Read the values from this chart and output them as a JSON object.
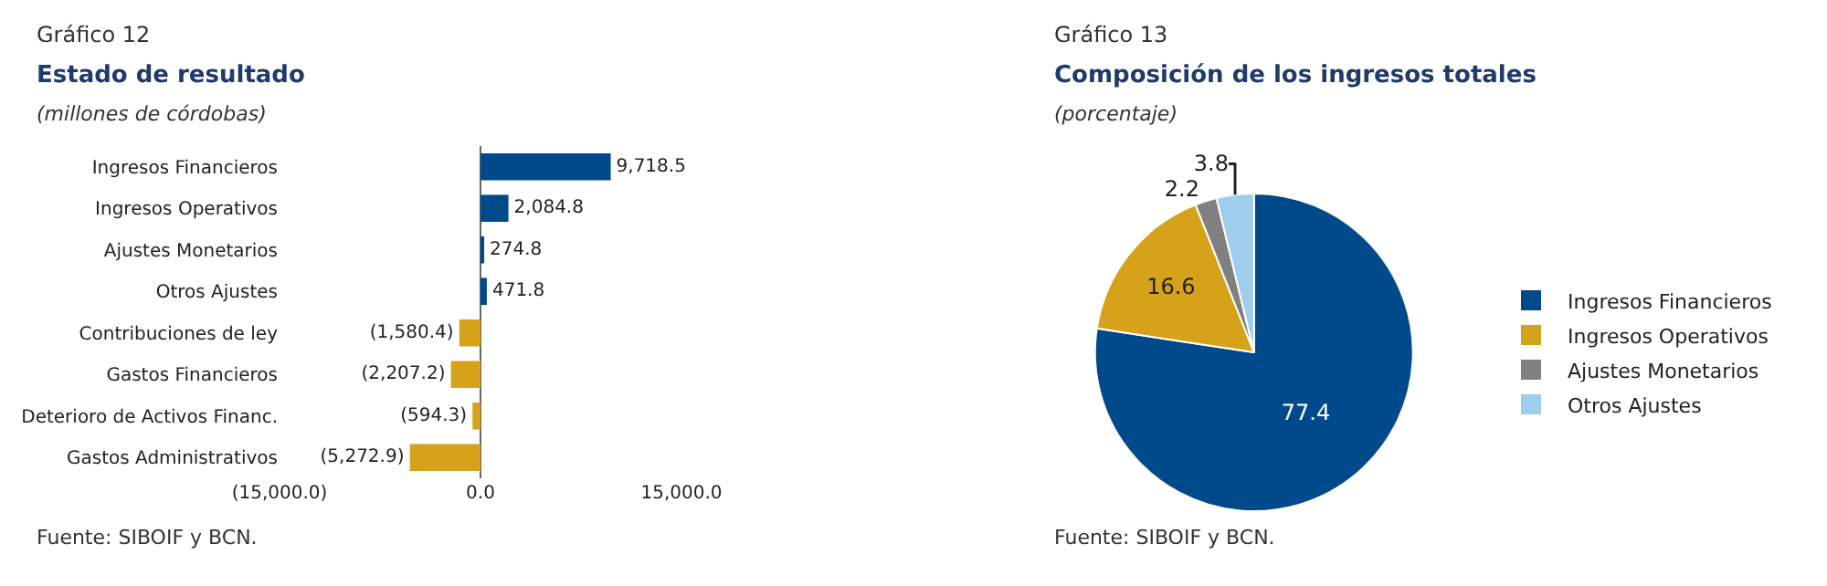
{
  "chart_data": [
    {
      "type": "bar",
      "orientation": "horizontal",
      "title": "Estado de resultado",
      "subtitle": "(millones de córdobas)",
      "annotations": [
        "Gráfico 12",
        "Fuente: SIBOIF y BCN."
      ],
      "categories": [
        "Ingresos Financieros",
        "Ingresos Operativos",
        "Ajustes Monetarios",
        "Otros Ajustes",
        "Contribuciones de ley",
        "Gastos Financieros",
        "Deterioro de Activos Financ.",
        "Gastos Administrativos"
      ],
      "values": [
        9718.5,
        2084.8,
        274.8,
        471.8,
        -1580.4,
        -2207.2,
        -594.3,
        -5272.9
      ],
      "colors": [
        "#004a8c",
        "#004a8c",
        "#004a8c",
        "#004a8c",
        "#d6a21a",
        "#d6a21a",
        "#d6a21a",
        "#d6a21a"
      ],
      "value_labels": [
        "9,718.5",
        "2,084.8",
        "274.8",
        "471.8",
        "(1,580.4)",
        "(2,207.2)",
        "(594.3)",
        "(5,272.9)"
      ],
      "xlim": [
        -15000,
        15000
      ],
      "xticks": [
        {
          "value": -15000,
          "label": "(15,000.0)"
        },
        {
          "value": 0,
          "label": "0.0"
        },
        {
          "value": 15000,
          "label": "15,000.0"
        }
      ]
    },
    {
      "type": "pie",
      "title": "Composición de los ingresos totales",
      "subtitle": "(porcentaje)",
      "annotations": [
        "Gráfico 13",
        "Fuente: SIBOIF y BCN."
      ],
      "categories": [
        "Ingresos Financieros",
        "Ingresos Operativos",
        "Ajustes Monetarios",
        "Otros Ajustes"
      ],
      "values": [
        77.4,
        16.6,
        2.2,
        3.8
      ],
      "colors": [
        "#004a8c",
        "#d6a21a",
        "#808080",
        "#9fcdec"
      ],
      "data_labels": true,
      "legend": "right"
    }
  ]
}
